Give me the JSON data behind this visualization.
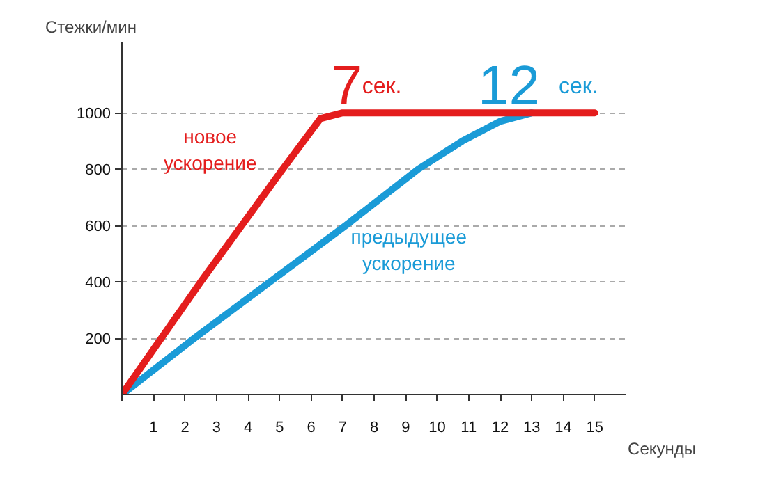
{
  "chart_data": {
    "type": "line",
    "xlabel": "Секунды",
    "ylabel": "Стежки/мин",
    "xlim": [
      0,
      16
    ],
    "ylim": [
      0,
      1250
    ],
    "xticks": [
      {
        "value": 0,
        "label": null
      },
      1,
      2,
      3,
      4,
      5,
      6,
      7,
      8,
      9,
      10,
      11,
      12,
      13,
      14,
      15
    ],
    "yticks": [
      200,
      400,
      600,
      800,
      1000
    ],
    "grid": "y",
    "legend": false,
    "marker": "none",
    "line_style": "solid",
    "series": [
      {
        "name": "предыдущее ускорение",
        "color": "#1a9bd7",
        "x": [
          0,
          2.3,
          4.7,
          7.1,
          9.4,
          10.8,
          12,
          13
        ],
        "values": [
          0,
          200,
          400,
          600,
          800,
          900,
          970,
          1000
        ]
      },
      {
        "name": "новое ускорение",
        "color": "#e41d1d",
        "x": [
          0,
          2.5,
          3.8,
          5.1,
          6.3,
          7,
          15
        ],
        "values": [
          0,
          400,
          600,
          800,
          980,
          1000,
          1000
        ]
      }
    ],
    "annotations": [
      {
        "text": "7сек.",
        "x": 7,
        "y": 1000
      },
      {
        "text": "12 сек.",
        "x": 12,
        "y": 1000
      }
    ]
  }
}
